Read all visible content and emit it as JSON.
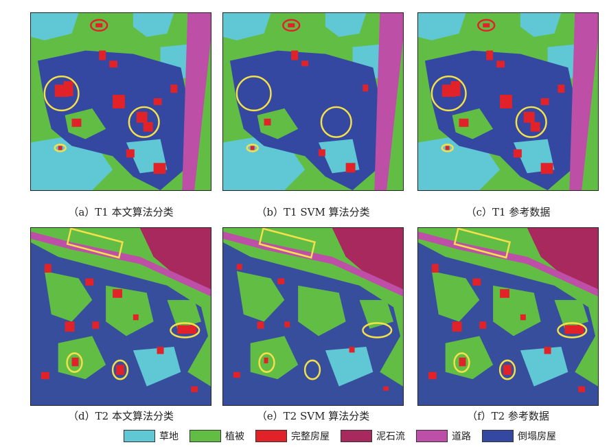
{
  "captions": {
    "a": "（a）T1 本文算法分类",
    "b": "（b）T1 SVM 算法分类",
    "c": "（c）T1 参考数据",
    "d": "（d）T2 本文算法分类",
    "e": "（e）T2 SVM 算法分类",
    "f": "（f）T2 参考数据"
  },
  "legend": [
    {
      "label": "草地",
      "color": "#5fc8d4"
    },
    {
      "label": "植被",
      "color": "#62bd44"
    },
    {
      "label": "完整房屋",
      "color": "#e12228"
    },
    {
      "label": "泥石流",
      "color": "#a8295e"
    },
    {
      "label": "道路",
      "color": "#bd4fa6"
    },
    {
      "label": "倒塌房屋",
      "color": "#3548a1"
    }
  ],
  "colors": {
    "grass": "#5fc8d4",
    "vegetation": "#62bd44",
    "intact_house": "#e12228",
    "debris_flow": "#a8295e",
    "road": "#bd4fa6",
    "collapsed_house": "#3548a1",
    "highlight_yellow": "#f3e04a",
    "highlight_red": "#e12228"
  }
}
